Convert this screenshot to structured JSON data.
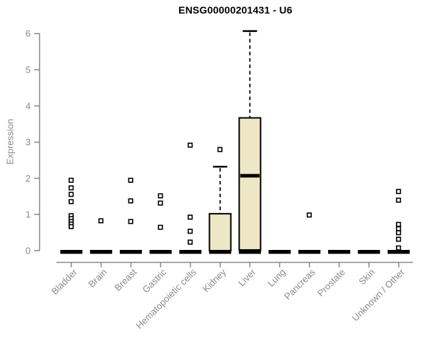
{
  "chart_data": {
    "type": "boxplot",
    "title": "ENSG00000201431 - U6",
    "ylabel": "Expression",
    "xlabel": "",
    "ylim": [
      0,
      6.2
    ],
    "yticks": [
      0,
      1,
      2,
      3,
      4,
      5,
      6
    ],
    "grid": false,
    "legend": "none",
    "categories": [
      "Bladder",
      "Brain",
      "Breast",
      "Gastric",
      "Hematopoietic cells",
      "Kidney",
      "Liver",
      "Lung",
      "Pancreas",
      "Prostate",
      "Skin",
      "Unknown / Other"
    ],
    "boxes": [
      {
        "category": "Bladder",
        "q1": 0,
        "median": 0,
        "q3": 0,
        "whisker_low": 0,
        "whisker_high": 0,
        "outliers": [
          1.94,
          1.73,
          1.55,
          1.35,
          0.96,
          0.88,
          0.8,
          0.73,
          0.66
        ]
      },
      {
        "category": "Brain",
        "q1": 0,
        "median": 0,
        "q3": 0,
        "whisker_low": 0,
        "whisker_high": 0,
        "outliers": [
          0.82
        ]
      },
      {
        "category": "Breast",
        "q1": 0,
        "median": 0,
        "q3": 0,
        "whisker_low": 0,
        "whisker_high": 0,
        "outliers": [
          1.94,
          1.37,
          0.8
        ]
      },
      {
        "category": "Gastric",
        "q1": 0,
        "median": 0,
        "q3": 0,
        "whisker_low": 0,
        "whisker_high": 0,
        "outliers": [
          1.51,
          1.31,
          0.64
        ]
      },
      {
        "category": "Hematopoietic cells",
        "q1": 0,
        "median": 0,
        "q3": 0,
        "whisker_low": 0,
        "whisker_high": 0,
        "outliers": [
          2.91,
          0.92,
          0.53,
          0.23
        ]
      },
      {
        "category": "Kidney",
        "q1": 0,
        "median": 0,
        "q3": 1.02,
        "whisker_low": 0,
        "whisker_high": 2.32,
        "outliers": [
          2.79
        ]
      },
      {
        "category": "Liver",
        "q1": 0.02,
        "median": 2.07,
        "q3": 3.67,
        "whisker_low": 0.02,
        "whisker_high": 6.07,
        "outliers": []
      },
      {
        "category": "Lung",
        "q1": 0,
        "median": 0,
        "q3": 0,
        "whisker_low": 0,
        "whisker_high": 0,
        "outliers": []
      },
      {
        "category": "Pancreas",
        "q1": 0,
        "median": 0,
        "q3": 0,
        "whisker_low": 0,
        "whisker_high": 0,
        "outliers": [
          0.98
        ]
      },
      {
        "category": "Prostate",
        "q1": 0,
        "median": 0,
        "q3": 0,
        "whisker_low": 0,
        "whisker_high": 0,
        "outliers": []
      },
      {
        "category": "Skin",
        "q1": 0,
        "median": 0,
        "q3": 0,
        "whisker_low": 0,
        "whisker_high": 0,
        "outliers": []
      },
      {
        "category": "Unknown / Other",
        "q1": 0,
        "median": 0,
        "q3": 0,
        "whisker_low": 0,
        "whisker_high": 0,
        "outliers": [
          1.63,
          1.39,
          0.72,
          0.6,
          0.49,
          0.31,
          0.07
        ]
      }
    ],
    "colors": {
      "box_fill": "#ede7c5",
      "box_border": "#000000",
      "median": "#000000",
      "whisker": "#000000",
      "outlier": "#000000",
      "axis": "#878787",
      "tick_text": "#8a8a8a",
      "title": "#000000",
      "background": "#ffffff"
    }
  }
}
